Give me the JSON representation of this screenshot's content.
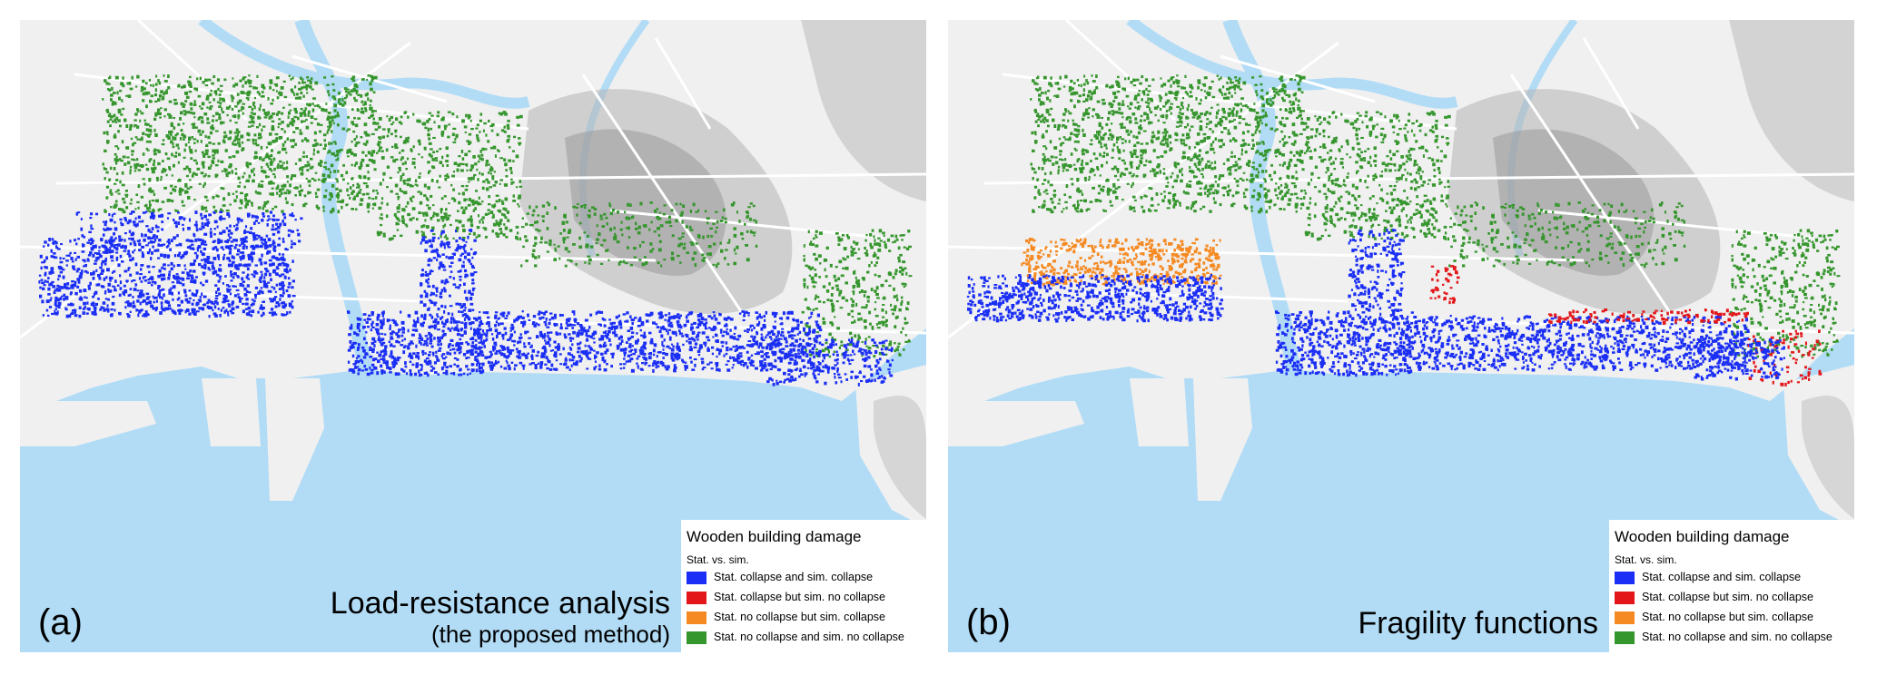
{
  "colors": {
    "water": "#b2dcf6",
    "land": "#f0f0f0",
    "road": "#ffffff",
    "terrain": "#b5b5b5",
    "collapse_both": "#1a2ef5",
    "stat_collapse_only": "#e3171a",
    "sim_collapse_only": "#f58a23",
    "no_collapse_both": "#36962e"
  },
  "panels": [
    {
      "label": "(a)",
      "method_title": "Load-resistance analysis",
      "method_subtitle": "(the proposed method)",
      "legend": {
        "title": "Wooden building damage",
        "subtitle": "Stat. vs. sim.",
        "items": [
          {
            "label": "Stat. collapse and sim. collapse",
            "color": "#1a2ef5"
          },
          {
            "label": "Stat. collapse but sim. no collapse",
            "color": "#e3171a"
          },
          {
            "label": "Stat. no collapse but sim. collapse",
            "color": "#f58a23"
          },
          {
            "label": "Stat. no collapse and sim. no collapse",
            "color": "#36962e"
          }
        ]
      }
    },
    {
      "label": "(b)",
      "method_title": "Fragility functions",
      "method_subtitle": "",
      "legend": {
        "title": "Wooden building damage",
        "subtitle": "Stat. vs. sim.",
        "items": [
          {
            "label": "Stat. collapse and sim. collapse",
            "color": "#1a2ef5"
          },
          {
            "label": "Stat. collapse but sim. no collapse",
            "color": "#e3171a"
          },
          {
            "label": "Stat. no collapse but sim. collapse",
            "color": "#f58a23"
          },
          {
            "label": "Stat. no collapse and sim. no collapse",
            "color": "#36962e"
          }
        ]
      }
    }
  ]
}
